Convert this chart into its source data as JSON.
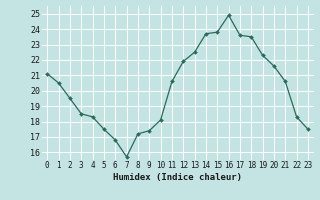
{
  "x": [
    0,
    1,
    2,
    3,
    4,
    5,
    6,
    7,
    8,
    9,
    10,
    11,
    12,
    13,
    14,
    15,
    16,
    17,
    18,
    19,
    20,
    21,
    22,
    23
  ],
  "y": [
    21.1,
    20.5,
    19.5,
    18.5,
    18.3,
    17.5,
    16.8,
    15.7,
    17.2,
    17.4,
    18.1,
    20.6,
    21.9,
    22.5,
    23.7,
    23.8,
    24.9,
    23.6,
    23.5,
    22.3,
    21.6,
    20.6,
    18.3,
    17.5
  ],
  "xlabel": "Humidex (Indice chaleur)",
  "background_color": "#c4e4e4",
  "grid_color": "#ffffff",
  "line_color": "#2a6b5a",
  "marker_color": "#2a6b5a",
  "ylim": [
    15.5,
    25.5
  ],
  "xlim": [
    -0.5,
    23.5
  ],
  "yticks": [
    16,
    17,
    18,
    19,
    20,
    21,
    22,
    23,
    24,
    25
  ],
  "xticks": [
    0,
    1,
    2,
    3,
    4,
    5,
    6,
    7,
    8,
    9,
    10,
    11,
    12,
    13,
    14,
    15,
    16,
    17,
    18,
    19,
    20,
    21,
    22,
    23
  ],
  "xtick_labels": [
    "0",
    "1",
    "2",
    "3",
    "4",
    "5",
    "6",
    "7",
    "8",
    "9",
    "10",
    "11",
    "12",
    "13",
    "14",
    "15",
    "16",
    "17",
    "18",
    "19",
    "20",
    "21",
    "22",
    "23"
  ]
}
